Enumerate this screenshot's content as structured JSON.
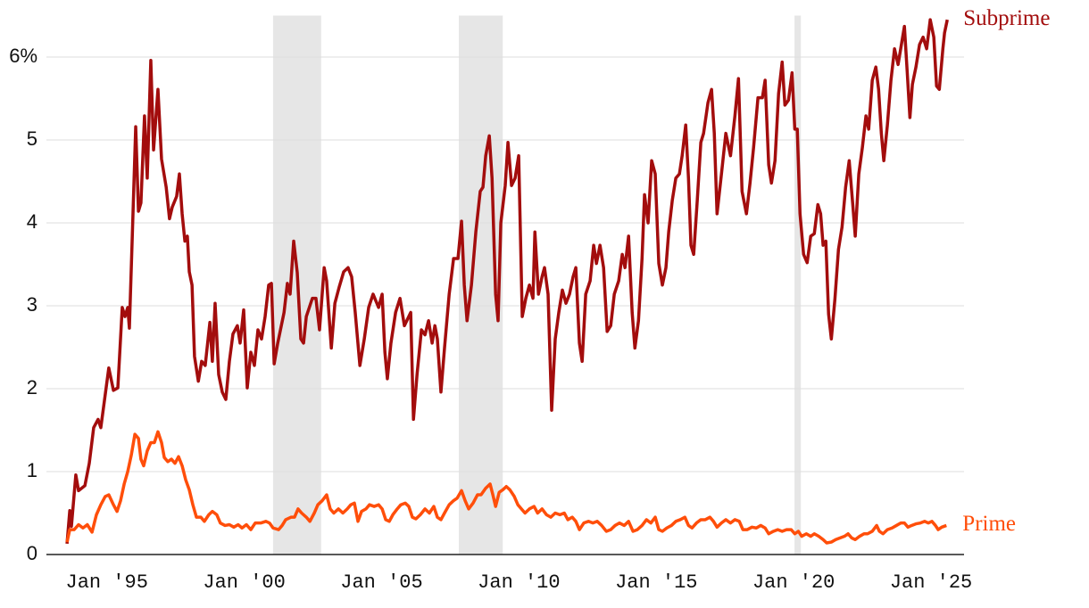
{
  "chart_data": {
    "type": "line",
    "xlim": [
      1992.8,
      2026.2
    ],
    "xticks": [
      {
        "value": 1995,
        "label": "Jan '95"
      },
      {
        "value": 2000,
        "label": "Jan '00"
      },
      {
        "value": 2005,
        "label": "Jan '05"
      },
      {
        "value": 2010,
        "label": "Jan '10"
      },
      {
        "value": 2015,
        "label": "Jan '15"
      },
      {
        "value": 2020,
        "label": "Jan '20"
      },
      {
        "value": 2025,
        "label": "Jan '25"
      }
    ],
    "ylim": [
      0,
      6.5
    ],
    "yticks": [
      0,
      1,
      2,
      3,
      4,
      5,
      {
        "value": 6,
        "label": "6%"
      }
    ],
    "grid": true,
    "shaded_periods": [
      [
        2001.05,
        2002.8
      ],
      [
        2007.81,
        2009.41
      ],
      [
        2020.03,
        2020.26
      ]
    ],
    "shade_color": "#e6e6e6",
    "series": [
      {
        "name": "Subprime",
        "color": "#a30d0d",
        "x": [
          1993.55,
          1993.65,
          1993.71,
          1993.87,
          1993.97,
          1994.2,
          1994.36,
          1994.52,
          1994.68,
          1994.78,
          1995.07,
          1995.24,
          1995.4,
          1995.56,
          1995.66,
          1995.76,
          1995.82,
          1995.92,
          1996.05,
          1996.15,
          1996.24,
          1996.37,
          1996.47,
          1996.6,
          1996.7,
          1996.86,
          1996.99,
          1997.16,
          1997.28,
          1997.38,
          1997.54,
          1997.64,
          1997.74,
          1997.84,
          1997.93,
          1998.0,
          1998.1,
          1998.19,
          1998.33,
          1998.45,
          1998.58,
          1998.75,
          1998.84,
          1998.94,
          1999.07,
          1999.2,
          1999.33,
          1999.46,
          1999.59,
          1999.75,
          1999.85,
          1999.98,
          2000.11,
          2000.24,
          2000.37,
          2000.5,
          2000.63,
          2000.76,
          2000.89,
          2000.99,
          2001.09,
          2001.22,
          2001.45,
          2001.57,
          2001.67,
          2001.8,
          2001.93,
          2002.06,
          2002.16,
          2002.26,
          2002.48,
          2002.61,
          2002.74,
          2002.91,
          2003.0,
          2003.17,
          2003.3,
          2003.46,
          2003.62,
          2003.78,
          2003.91,
          2004.04,
          2004.21,
          2004.37,
          2004.53,
          2004.69,
          2004.89,
          2005.02,
          2005.12,
          2005.21,
          2005.34,
          2005.51,
          2005.67,
          2005.83,
          2006.06,
          2006.16,
          2006.29,
          2006.45,
          2006.58,
          2006.71,
          2006.84,
          2006.94,
          2007.03,
          2007.16,
          2007.29,
          2007.46,
          2007.62,
          2007.78,
          2007.91,
          2008.01,
          2008.11,
          2008.27,
          2008.43,
          2008.59,
          2008.69,
          2008.79,
          2008.92,
          2009.02,
          2009.15,
          2009.24,
          2009.34,
          2009.5,
          2009.6,
          2009.73,
          2009.86,
          2009.99,
          2010.12,
          2010.25,
          2010.38,
          2010.51,
          2010.58,
          2010.71,
          2010.84,
          2010.93,
          2011.06,
          2011.19,
          2011.32,
          2011.45,
          2011.58,
          2011.71,
          2011.84,
          2011.97,
          2012.07,
          2012.2,
          2012.3,
          2012.43,
          2012.59,
          2012.72,
          2012.82,
          2012.95,
          2013.08,
          2013.21,
          2013.34,
          2013.47,
          2013.63,
          2013.76,
          2013.86,
          2013.99,
          2014.12,
          2014.22,
          2014.35,
          2014.48,
          2014.57,
          2014.7,
          2014.83,
          2014.96,
          2015.09,
          2015.22,
          2015.35,
          2015.45,
          2015.58,
          2015.71,
          2015.84,
          2015.94,
          2016.07,
          2016.17,
          2016.26,
          2016.36,
          2016.49,
          2016.62,
          2016.72,
          2016.88,
          2017.01,
          2017.11,
          2017.21,
          2017.37,
          2017.53,
          2017.7,
          2017.86,
          2017.99,
          2018.12,
          2018.28,
          2018.41,
          2018.54,
          2018.7,
          2018.86,
          2018.96,
          2019.09,
          2019.19,
          2019.32,
          2019.45,
          2019.58,
          2019.68,
          2019.81,
          2019.94,
          2020.04,
          2020.13,
          2020.23,
          2020.36,
          2020.49,
          2020.62,
          2020.75,
          2020.88,
          2020.98,
          2021.07,
          2021.17,
          2021.27,
          2021.37,
          2021.5,
          2021.63,
          2021.76,
          2021.89,
          2022.02,
          2022.15,
          2022.24,
          2022.37,
          2022.5,
          2022.63,
          2022.73,
          2022.86,
          2022.99,
          2023.09,
          2023.19,
          2023.28,
          2023.41,
          2023.54,
          2023.67,
          2023.8,
          2023.93,
          2024.03,
          2024.13,
          2024.23,
          2024.32,
          2024.45,
          2024.58,
          2024.71,
          2024.84,
          2024.97,
          2025.1,
          2025.2,
          2025.3,
          2025.43,
          2025.49,
          2025.59
        ],
        "values": [
          0.13,
          0.53,
          0.34,
          0.96,
          0.77,
          0.83,
          1.1,
          1.53,
          1.63,
          1.53,
          2.25,
          1.98,
          2.01,
          2.98,
          2.87,
          2.98,
          2.73,
          3.78,
          5.16,
          4.14,
          4.24,
          5.29,
          4.54,
          5.96,
          4.88,
          5.61,
          4.77,
          4.43,
          4.05,
          4.19,
          4.32,
          4.59,
          4.11,
          3.78,
          3.84,
          3.41,
          3.25,
          2.39,
          2.09,
          2.33,
          2.28,
          2.8,
          2.33,
          3.03,
          2.17,
          1.96,
          1.87,
          2.33,
          2.66,
          2.76,
          2.55,
          2.95,
          2.01,
          2.44,
          2.28,
          2.71,
          2.6,
          2.87,
          3.25,
          3.27,
          2.3,
          2.55,
          2.92,
          3.27,
          3.14,
          3.78,
          3.4,
          2.6,
          2.55,
          2.87,
          3.09,
          3.09,
          2.71,
          3.46,
          3.3,
          2.49,
          3.03,
          3.23,
          3.41,
          3.46,
          3.35,
          2.92,
          2.28,
          2.6,
          2.98,
          3.14,
          2.98,
          3.14,
          2.44,
          2.12,
          2.55,
          2.92,
          3.09,
          2.76,
          2.92,
          1.63,
          2.17,
          2.71,
          2.65,
          2.82,
          2.55,
          2.76,
          2.6,
          1.96,
          2.49,
          3.14,
          3.57,
          3.57,
          4.02,
          3.25,
          2.82,
          3.25,
          3.89,
          4.38,
          4.43,
          4.81,
          5.05,
          4.54,
          3.14,
          2.82,
          4.0,
          4.45,
          4.97,
          4.45,
          4.54,
          4.81,
          2.87,
          3.09,
          3.25,
          3.09,
          3.89,
          3.14,
          3.35,
          3.46,
          3.14,
          1.74,
          2.6,
          2.92,
          3.19,
          3.03,
          3.14,
          3.35,
          3.46,
          2.55,
          2.33,
          3.14,
          3.3,
          3.73,
          3.51,
          3.73,
          3.46,
          2.69,
          2.76,
          3.14,
          3.3,
          3.62,
          3.46,
          3.84,
          2.92,
          2.49,
          2.82,
          3.57,
          4.34,
          4.0,
          4.75,
          4.59,
          3.51,
          3.25,
          3.46,
          3.89,
          4.27,
          4.54,
          4.59,
          4.81,
          5.18,
          4.54,
          3.73,
          3.62,
          4.27,
          4.97,
          5.08,
          5.45,
          5.61,
          5.08,
          4.11,
          4.59,
          5.08,
          4.81,
          5.29,
          5.74,
          4.38,
          4.11,
          4.48,
          4.91,
          5.51,
          5.51,
          5.72,
          4.7,
          4.48,
          4.75,
          5.56,
          5.94,
          5.42,
          5.48,
          5.81,
          5.13,
          5.13,
          4.11,
          3.62,
          3.52,
          3.84,
          3.87,
          4.22,
          4.11,
          3.73,
          3.78,
          2.9,
          2.6,
          3.08,
          3.68,
          3.95,
          4.43,
          4.75,
          4.22,
          3.84,
          4.59,
          4.91,
          5.29,
          5.13,
          5.72,
          5.88,
          5.61,
          5.08,
          4.75,
          5.18,
          5.72,
          6.1,
          5.91,
          6.17,
          6.37,
          5.83,
          5.27,
          5.67,
          5.88,
          6.15,
          6.24,
          6.1,
          6.45,
          6.24,
          5.65,
          5.61,
          6.1,
          6.29,
          6.45
        ]
      },
      {
        "name": "Prime",
        "color": "#ff4e0a",
        "x": [
          1993.55,
          1993.65,
          1993.81,
          1993.97,
          1994.13,
          1994.29,
          1994.46,
          1994.62,
          1994.78,
          1994.94,
          1995.07,
          1995.24,
          1995.37,
          1995.5,
          1995.63,
          1995.76,
          1995.89,
          1996.02,
          1996.15,
          1996.24,
          1996.34,
          1996.47,
          1996.6,
          1996.73,
          1996.86,
          1996.99,
          1997.09,
          1997.22,
          1997.35,
          1997.48,
          1997.61,
          1997.74,
          1997.87,
          1998.0,
          1998.13,
          1998.26,
          1998.42,
          1998.55,
          1998.71,
          1998.84,
          1999.0,
          1999.13,
          1999.3,
          1999.46,
          1999.62,
          1999.78,
          1999.92,
          2000.08,
          2000.24,
          2000.4,
          2000.6,
          2000.79,
          2000.92,
          2001.05,
          2001.25,
          2001.38,
          2001.51,
          2001.7,
          2001.83,
          2001.96,
          2002.09,
          2002.26,
          2002.39,
          2002.55,
          2002.68,
          2002.84,
          2003.0,
          2003.13,
          2003.26,
          2003.43,
          2003.59,
          2003.75,
          2003.88,
          2004.01,
          2004.14,
          2004.27,
          2004.43,
          2004.56,
          2004.73,
          2004.89,
          2005.02,
          2005.15,
          2005.28,
          2005.41,
          2005.57,
          2005.7,
          2005.86,
          2005.99,
          2006.12,
          2006.25,
          2006.41,
          2006.58,
          2006.74,
          2006.9,
          2007.03,
          2007.16,
          2007.29,
          2007.46,
          2007.62,
          2007.75,
          2007.91,
          2008.04,
          2008.17,
          2008.33,
          2008.49,
          2008.62,
          2008.79,
          2008.95,
          2009.05,
          2009.15,
          2009.28,
          2009.41,
          2009.54,
          2009.67,
          2009.83,
          2009.96,
          2010.09,
          2010.22,
          2010.38,
          2010.55,
          2010.68,
          2010.84,
          2011.0,
          2011.16,
          2011.32,
          2011.49,
          2011.65,
          2011.78,
          2011.94,
          2012.07,
          2012.2,
          2012.36,
          2012.53,
          2012.69,
          2012.85,
          2013.01,
          2013.18,
          2013.34,
          2013.5,
          2013.66,
          2013.83,
          2013.99,
          2014.15,
          2014.31,
          2014.48,
          2014.64,
          2014.8,
          2014.96,
          2015.09,
          2015.22,
          2015.38,
          2015.55,
          2015.71,
          2015.87,
          2016.04,
          2016.17,
          2016.3,
          2016.46,
          2016.62,
          2016.78,
          2016.95,
          2017.08,
          2017.21,
          2017.37,
          2017.53,
          2017.7,
          2017.86,
          2018.02,
          2018.15,
          2018.31,
          2018.48,
          2018.64,
          2018.8,
          2018.96,
          2019.09,
          2019.26,
          2019.42,
          2019.58,
          2019.74,
          2019.91,
          2020.04,
          2020.17,
          2020.29,
          2020.46,
          2020.62,
          2020.75,
          2020.91,
          2021.07,
          2021.2,
          2021.37,
          2021.53,
          2021.69,
          2021.85,
          2021.98,
          2022.11,
          2022.24,
          2022.4,
          2022.56,
          2022.69,
          2022.86,
          2023.02,
          2023.12,
          2023.25,
          2023.41,
          2023.58,
          2023.74,
          2023.9,
          2024.03,
          2024.16,
          2024.29,
          2024.45,
          2024.61,
          2024.77,
          2024.9,
          2025.03,
          2025.16,
          2025.26,
          2025.39,
          2025.56
        ],
        "values": [
          0.15,
          0.3,
          0.3,
          0.36,
          0.32,
          0.36,
          0.27,
          0.48,
          0.6,
          0.7,
          0.72,
          0.6,
          0.52,
          0.65,
          0.85,
          1.0,
          1.2,
          1.45,
          1.4,
          1.15,
          1.07,
          1.25,
          1.35,
          1.35,
          1.48,
          1.35,
          1.17,
          1.12,
          1.15,
          1.1,
          1.18,
          1.07,
          0.9,
          0.78,
          0.6,
          0.45,
          0.45,
          0.4,
          0.48,
          0.52,
          0.48,
          0.38,
          0.35,
          0.36,
          0.33,
          0.36,
          0.32,
          0.36,
          0.3,
          0.38,
          0.38,
          0.4,
          0.38,
          0.32,
          0.3,
          0.35,
          0.42,
          0.45,
          0.45,
          0.55,
          0.5,
          0.45,
          0.4,
          0.5,
          0.6,
          0.65,
          0.72,
          0.55,
          0.5,
          0.55,
          0.5,
          0.55,
          0.6,
          0.62,
          0.4,
          0.52,
          0.55,
          0.6,
          0.58,
          0.6,
          0.55,
          0.42,
          0.4,
          0.48,
          0.55,
          0.6,
          0.62,
          0.58,
          0.45,
          0.43,
          0.48,
          0.55,
          0.5,
          0.58,
          0.45,
          0.42,
          0.5,
          0.6,
          0.65,
          0.68,
          0.77,
          0.65,
          0.55,
          0.62,
          0.72,
          0.72,
          0.8,
          0.85,
          0.72,
          0.58,
          0.75,
          0.78,
          0.82,
          0.78,
          0.7,
          0.6,
          0.55,
          0.5,
          0.55,
          0.58,
          0.5,
          0.55,
          0.48,
          0.45,
          0.5,
          0.48,
          0.5,
          0.42,
          0.45,
          0.4,
          0.3,
          0.38,
          0.4,
          0.38,
          0.4,
          0.35,
          0.28,
          0.3,
          0.35,
          0.38,
          0.35,
          0.4,
          0.28,
          0.3,
          0.35,
          0.42,
          0.38,
          0.45,
          0.3,
          0.28,
          0.32,
          0.35,
          0.4,
          0.42,
          0.45,
          0.35,
          0.32,
          0.38,
          0.42,
          0.42,
          0.45,
          0.4,
          0.33,
          0.38,
          0.42,
          0.38,
          0.42,
          0.4,
          0.3,
          0.3,
          0.33,
          0.32,
          0.35,
          0.32,
          0.25,
          0.28,
          0.3,
          0.28,
          0.3,
          0.3,
          0.25,
          0.28,
          0.22,
          0.25,
          0.22,
          0.25,
          0.22,
          0.18,
          0.14,
          0.15,
          0.18,
          0.2,
          0.22,
          0.25,
          0.2,
          0.18,
          0.22,
          0.25,
          0.25,
          0.28,
          0.35,
          0.28,
          0.25,
          0.3,
          0.32,
          0.35,
          0.38,
          0.38,
          0.33,
          0.35,
          0.37,
          0.38,
          0.4,
          0.38,
          0.4,
          0.35,
          0.3,
          0.33,
          0.35
        ]
      }
    ]
  }
}
